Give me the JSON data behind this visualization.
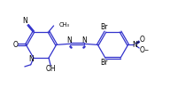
{
  "bg_color": "#ffffff",
  "line_color": "#3333cc",
  "text_color": "#000000",
  "fig_width": 1.92,
  "fig_height": 0.99,
  "dpi": 100,
  "lw": 0.9,
  "fs": 5.0,
  "xlim": [
    0,
    10.5
  ],
  "ylim": [
    0,
    5.5
  ]
}
